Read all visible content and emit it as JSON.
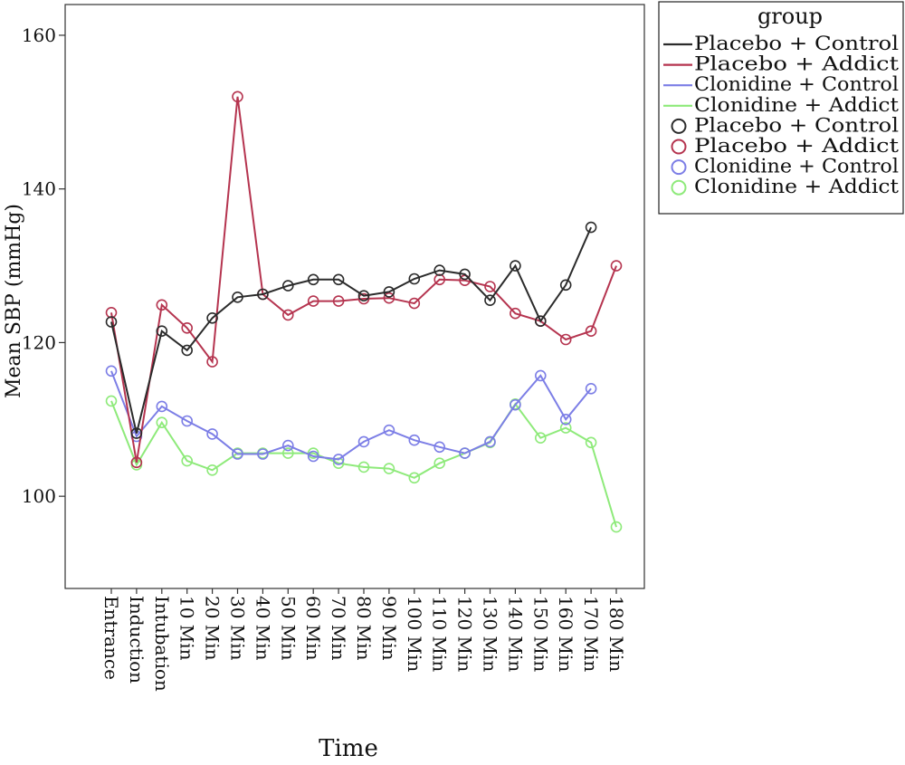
{
  "chart_data": {
    "type": "line",
    "xlabel": "Time",
    "ylabel": "Mean SBP (mmHg)",
    "ylim": [
      88,
      164
    ],
    "yticks": [
      100,
      120,
      140,
      160
    ],
    "grid": false,
    "legend": {
      "title": "group",
      "placement": "top-right",
      "line_entries": [
        "Placebo + Control",
        "Placebo + Addict",
        "Clonidine + Control",
        "Clonidine + Addict"
      ],
      "marker_entries": [
        "Placebo + Control",
        "Placebo + Addict",
        "Clonidine + Control",
        "Clonidine + Addict"
      ]
    },
    "categories": [
      "Entrance",
      "Induction",
      "Intubation",
      "10 Min",
      "20 Min",
      "30 Min",
      "40 Min",
      "50 Min",
      "60 Min",
      "70 Min",
      "80 Min",
      "90 Min",
      "100 Min",
      "110 Min",
      "120 Min",
      "130 Min",
      "140 Min",
      "150 Min",
      "160 Min",
      "170 Min",
      "180 Min"
    ],
    "series": [
      {
        "name": "Placebo + Control",
        "color": "#2b2b2b",
        "values": [
          122.7,
          108.2,
          121.5,
          119.0,
          123.2,
          125.9,
          126.3,
          127.4,
          128.2,
          128.2,
          126.1,
          126.6,
          128.3,
          129.4,
          128.9,
          125.5,
          130.0,
          122.8,
          127.5,
          135.0,
          null
        ]
      },
      {
        "name": "Placebo + Addict",
        "color": "#b5344f",
        "values": [
          123.9,
          104.4,
          124.9,
          121.9,
          117.5,
          152.0,
          126.3,
          123.6,
          125.4,
          125.4,
          125.7,
          125.8,
          125.1,
          128.2,
          128.1,
          127.3,
          123.8,
          122.8,
          120.4,
          121.5,
          130.0
        ]
      },
      {
        "name": "Clonidine + Control",
        "color": "#7c7ee6",
        "values": [
          116.3,
          107.8,
          111.7,
          109.8,
          108.1,
          105.5,
          105.5,
          106.6,
          105.2,
          104.8,
          107.1,
          108.6,
          107.3,
          106.4,
          105.6,
          107.1,
          111.9,
          115.7,
          110.0,
          114.0,
          null
        ]
      },
      {
        "name": "Clonidine + Addict",
        "color": "#8eea7a",
        "values": [
          112.4,
          104.1,
          109.6,
          104.6,
          103.4,
          105.6,
          105.6,
          105.6,
          105.6,
          104.3,
          103.8,
          103.6,
          102.4,
          104.3,
          105.6,
          107.0,
          112.0,
          107.6,
          108.9,
          107.0,
          96.0
        ]
      }
    ]
  }
}
